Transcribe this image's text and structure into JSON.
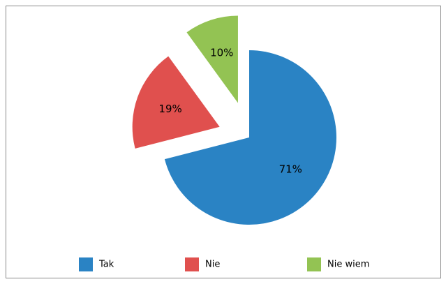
{
  "chart_data": {
    "type": "pie",
    "categories": [
      "Tak",
      "Nie",
      "Nie wiem"
    ],
    "values": [
      71,
      19,
      10
    ],
    "value_labels": [
      "71%",
      "19%",
      "10%"
    ],
    "colors": [
      "#2a83c4",
      "#e0504e",
      "#93c353"
    ],
    "legend": "bottom"
  }
}
